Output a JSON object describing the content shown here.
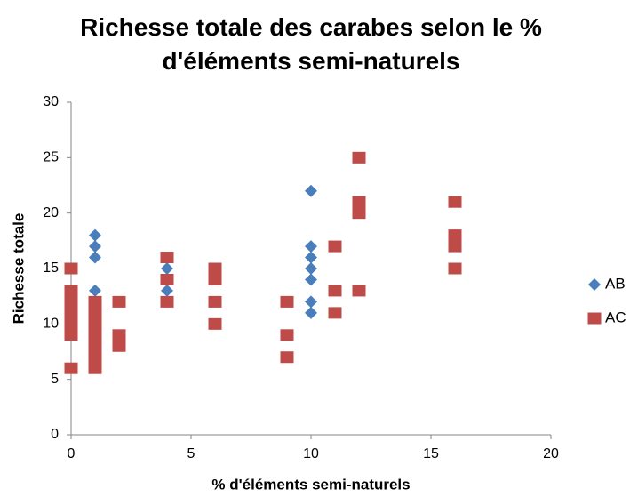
{
  "chart_data": {
    "type": "scatter",
    "title": "Richesse totale des carabes selon le % d'éléments semi-naturels",
    "x_label": "% d'éléments semi-naturels",
    "y_label": "Richesse totale",
    "xlim": [
      0,
      20
    ],
    "xticks": [
      0,
      5,
      10,
      15,
      20
    ],
    "ylim": [
      0,
      30
    ],
    "yticks": [
      0,
      5,
      10,
      15,
      20,
      25,
      30
    ],
    "grid": false,
    "legend": "right",
    "series": [
      {
        "name": "AB",
        "color": "#4a7ebb",
        "marker": "diamond",
        "x": [
          1,
          1,
          1,
          1,
          4,
          4,
          4,
          10,
          10,
          10,
          10,
          10,
          10,
          10
        ],
        "values": [
          18,
          17,
          16,
          13,
          15,
          14,
          13,
          22,
          17,
          16,
          15,
          14,
          12,
          11
        ]
      },
      {
        "name": "AC",
        "color": "#be4b48",
        "marker": "square",
        "x": [
          0,
          0,
          0,
          0,
          0,
          0,
          0,
          1,
          1,
          1,
          1,
          1,
          1,
          1,
          2,
          2,
          2,
          4,
          4,
          4,
          6,
          6,
          6,
          6,
          9,
          9,
          9,
          11,
          11,
          11,
          12,
          12,
          12,
          12,
          16,
          16,
          16,
          16
        ],
        "values": [
          15,
          13,
          12,
          11,
          10,
          9,
          6,
          12,
          11,
          10,
          9,
          8,
          7,
          6,
          12,
          9,
          8,
          16,
          14,
          12,
          15,
          14,
          12,
          10,
          12,
          9,
          7,
          17,
          13,
          11,
          25,
          21,
          20,
          13,
          21,
          18,
          17,
          15
        ]
      }
    ]
  }
}
